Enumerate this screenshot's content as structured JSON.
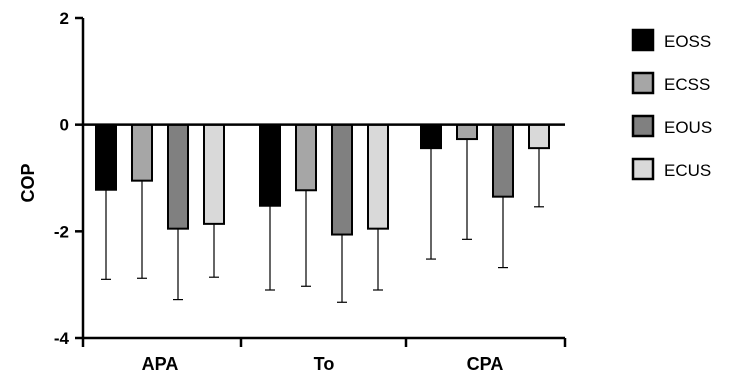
{
  "chart_data": {
    "type": "bar",
    "title": "",
    "xlabel": "",
    "ylabel": "COP",
    "ylim": [
      -4,
      2
    ],
    "yticks": [
      "2",
      "0",
      "-2",
      "-4"
    ],
    "ytick_values": [
      2,
      0,
      -2,
      -4
    ],
    "grid": false,
    "legend_position": "right",
    "categories": [
      "APA",
      "To",
      "CPA"
    ],
    "series": [
      {
        "name": "EOSS",
        "color": "#000000",
        "values": [
          -1.22,
          -1.52,
          -0.44
        ],
        "error": [
          1.68,
          1.58,
          2.08
        ]
      },
      {
        "name": "ECSS",
        "color": "#a6a6a6",
        "values": [
          -1.05,
          -1.23,
          -0.27
        ],
        "error": [
          1.83,
          1.8,
          1.88
        ]
      },
      {
        "name": "EOUS",
        "color": "#808080",
        "values": [
          -1.95,
          -2.06,
          -1.35
        ],
        "error": [
          1.33,
          1.27,
          1.33
        ]
      },
      {
        "name": "ECUS",
        "color": "#d9d9d9",
        "values": [
          -1.86,
          -1.95,
          -0.44
        ],
        "error": [
          1.0,
          1.15,
          1.1
        ]
      }
    ]
  }
}
